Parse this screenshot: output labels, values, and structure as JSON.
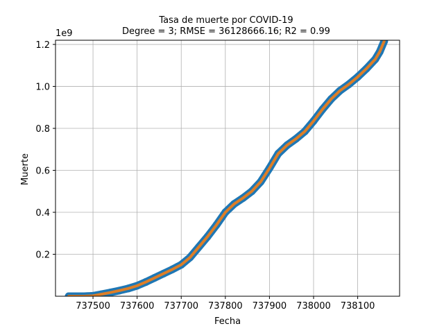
{
  "chart_data": {
    "type": "line",
    "title": "Tasa de muerte por COVID-19",
    "subtitle": "Degree = 3; RMSE = 36128666.16; R2 = 0.99",
    "xlabel": "Fecha",
    "ylabel": "Muerte",
    "y_offset_label": "1e9",
    "xlim": [
      737415,
      738195
    ],
    "ylim": [
      0,
      1.22
    ],
    "x_ticks": [
      737500,
      737600,
      737700,
      737800,
      737900,
      738000,
      738100
    ],
    "x_tick_labels": [
      "737500",
      "737600",
      "737700",
      "737800",
      "737900",
      "738000",
      "738100"
    ],
    "y_ticks": [
      0.2,
      0.4,
      0.6,
      0.8,
      1.0,
      1.2
    ],
    "y_tick_labels": [
      "0.2",
      "0.4",
      "0.6",
      "0.8",
      "1.0",
      "1.2"
    ],
    "grid": true,
    "series": [
      {
        "color": "#1f77b4",
        "style": "scatter",
        "x": [
          737445,
          737460,
          737480,
          737500,
          737520,
          737540,
          737560,
          737580,
          737600,
          737620,
          737640,
          737660,
          737680,
          737700,
          737720,
          737740,
          737760,
          737780,
          737800,
          737820,
          737840,
          737860,
          737880,
          737900,
          737920,
          737940,
          737960,
          737980,
          738000,
          738020,
          738040,
          738060,
          738080,
          738100,
          738120,
          738140,
          738150,
          738160
        ],
        "y": [
          0.0,
          0.0,
          0.0,
          0.002,
          0.01,
          0.018,
          0.027,
          0.037,
          0.05,
          0.068,
          0.088,
          0.108,
          0.128,
          0.15,
          0.185,
          0.235,
          0.285,
          0.34,
          0.4,
          0.44,
          0.468,
          0.5,
          0.545,
          0.61,
          0.68,
          0.72,
          0.75,
          0.785,
          0.835,
          0.89,
          0.94,
          0.98,
          1.01,
          1.045,
          1.085,
          1.13,
          1.165,
          1.215
        ]
      },
      {
        "color": "#ff7f0e",
        "style": "line",
        "x": [
          737445,
          737460,
          737480,
          737500,
          737520,
          737540,
          737560,
          737580,
          737600,
          737620,
          737640,
          737660,
          737680,
          737700,
          737720,
          737740,
          737760,
          737780,
          737800,
          737820,
          737840,
          737860,
          737880,
          737900,
          737920,
          737940,
          737960,
          737980,
          738000,
          738020,
          738040,
          738060,
          738080,
          738100,
          738120,
          738140,
          738150,
          738160
        ],
        "y": [
          0.0,
          0.0,
          0.0,
          0.002,
          0.01,
          0.018,
          0.027,
          0.037,
          0.05,
          0.068,
          0.088,
          0.108,
          0.128,
          0.15,
          0.185,
          0.235,
          0.285,
          0.34,
          0.4,
          0.44,
          0.468,
          0.5,
          0.545,
          0.61,
          0.68,
          0.72,
          0.75,
          0.785,
          0.835,
          0.89,
          0.94,
          0.98,
          1.01,
          1.045,
          1.085,
          1.13,
          1.165,
          1.215
        ]
      }
    ]
  }
}
